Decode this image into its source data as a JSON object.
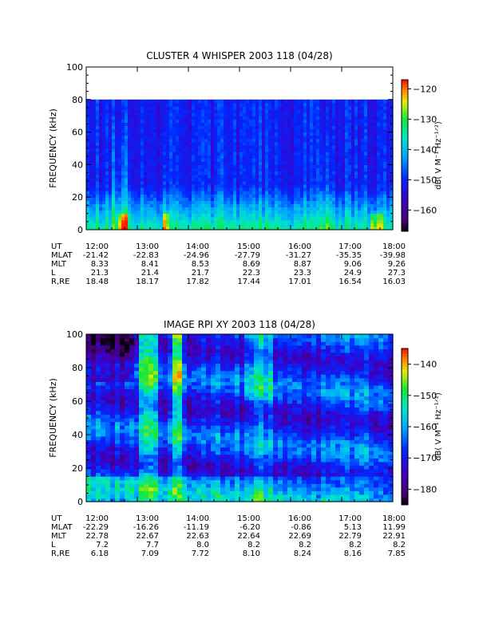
{
  "chart_data": [
    {
      "type": "heatmap",
      "title": "CLUSTER 4 WHISPER 2003 118 (04/28)",
      "ylabel": "FREQUENCY (kHz)",
      "ylim": [
        0,
        100
      ],
      "yticks": [
        "0",
        "20",
        "40",
        "60",
        "80",
        "100"
      ],
      "data_ylim": [
        0,
        80
      ],
      "colorbar": {
        "label": "dB( V M⁻¹ Hz⁻¹ᐟ²)",
        "range": [
          -167,
          -117
        ],
        "ticks": [
          "-120",
          "-130",
          "-140",
          "-150",
          "-160"
        ]
      },
      "ephemeris": {
        "row_labels": [
          "UT",
          "MLAT",
          "MLT",
          "L",
          "R,RE"
        ],
        "columns": [
          {
            "UT": "12:00",
            "MLAT": "-21.42",
            "MLT": "8.33",
            "L": "21.3",
            "R,RE": "18.48"
          },
          {
            "UT": "13:00",
            "MLAT": "-22.83",
            "MLT": "8.41",
            "L": "21.4",
            "R,RE": "18.17"
          },
          {
            "UT": "14:00",
            "MLAT": "-24.96",
            "MLT": "8.53",
            "L": "21.7",
            "R,RE": "17.82"
          },
          {
            "UT": "15:00",
            "MLAT": "-27.79",
            "MLT": "8.69",
            "L": "22.3",
            "R,RE": "17.44"
          },
          {
            "UT": "16:00",
            "MLAT": "-31.27",
            "MLT": "8.87",
            "L": "23.3",
            "R,RE": "17.01"
          },
          {
            "UT": "17:00",
            "MLAT": "-35.35",
            "MLT": "9.06",
            "L": "24.9",
            "R,RE": "16.54"
          },
          {
            "UT": "18:00",
            "MLAT": "-39.98",
            "MLT": "9.26",
            "L": "27.3",
            "R,RE": "16.03"
          }
        ]
      }
    },
    {
      "type": "heatmap",
      "title": "IMAGE RPI XY 2003 118 (04/28)",
      "ylabel": "FREQUENCY (kHz)",
      "ylim": [
        0,
        100
      ],
      "yticks": [
        "0",
        "20",
        "40",
        "60",
        "80",
        "100"
      ],
      "data_ylim": [
        0,
        100
      ],
      "colorbar": {
        "label": "dB( V M⁻¹ Hz⁻¹ᐟ²)",
        "range": [
          -185,
          -135
        ],
        "ticks": [
          "-140",
          "-150",
          "-160",
          "-170",
          "-180"
        ]
      },
      "ephemeris": {
        "row_labels": [
          "UT",
          "MLAT",
          "MLT",
          "L",
          "R,RE"
        ],
        "columns": [
          {
            "UT": "12:00",
            "MLAT": "-22.29",
            "MLT": "22.78",
            "L": "7.2",
            "R,RE": "6.18"
          },
          {
            "UT": "13:00",
            "MLAT": "-16.26",
            "MLT": "22.67",
            "L": "7.7",
            "R,RE": "7.09"
          },
          {
            "UT": "14:00",
            "MLAT": "-11.19",
            "MLT": "22.63",
            "L": "8.0",
            "R,RE": "7.72"
          },
          {
            "UT": "15:00",
            "MLAT": "-6.20",
            "MLT": "22.64",
            "L": "8.2",
            "R,RE": "8.10"
          },
          {
            "UT": "16:00",
            "MLAT": "-0.86",
            "MLT": "22.69",
            "L": "8.2",
            "R,RE": "8.24"
          },
          {
            "UT": "17:00",
            "MLAT": "5.13",
            "MLT": "22.79",
            "L": "8.2",
            "R,RE": "8.16"
          },
          {
            "UT": "18:00",
            "MLAT": "11.99",
            "MLT": "22.91",
            "L": "8.2",
            "R,RE": "7.85"
          }
        ]
      }
    }
  ]
}
